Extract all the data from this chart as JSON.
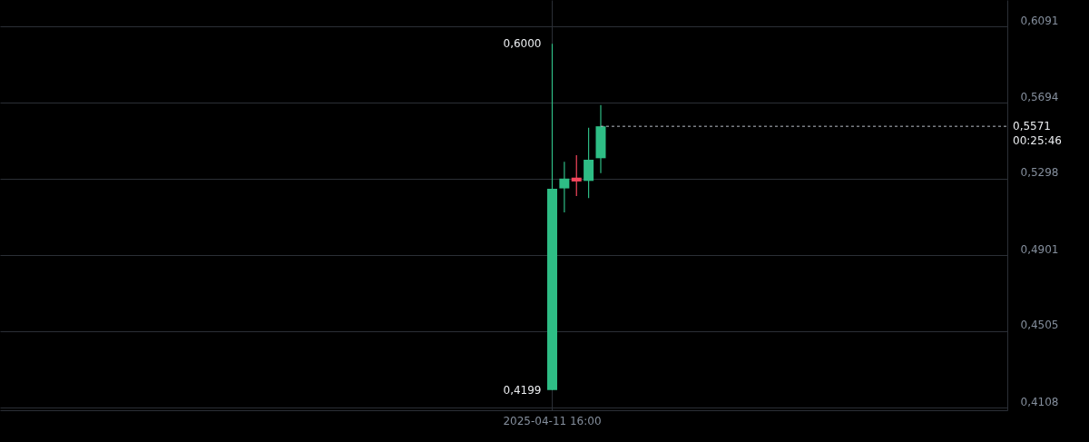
{
  "chart_data": {
    "type": "candlestick",
    "categories": [
      null,
      null,
      null,
      null,
      null,
      null,
      null,
      null,
      null,
      null,
      null,
      null,
      null,
      null,
      null,
      null,
      null,
      null,
      null,
      null,
      null,
      null,
      null,
      null,
      null,
      null,
      null,
      null,
      null,
      null,
      null,
      null,
      null,
      null,
      null,
      null,
      null,
      null,
      null,
      null,
      null,
      null,
      null,
      null,
      null,
      "2025-04-11 16:00",
      null,
      null,
      null,
      null,
      null,
      null,
      null,
      null,
      null,
      null,
      null,
      null,
      null,
      null,
      null,
      null,
      null,
      null,
      null,
      null,
      null,
      null,
      null,
      null,
      null,
      null,
      null,
      null,
      null,
      null,
      null,
      null,
      null,
      null,
      null,
      null,
      null
    ],
    "ohlc": [
      null,
      null,
      null,
      null,
      null,
      null,
      null,
      null,
      null,
      null,
      null,
      null,
      null,
      null,
      null,
      null,
      null,
      null,
      null,
      null,
      null,
      null,
      null,
      null,
      null,
      null,
      null,
      null,
      null,
      null,
      null,
      null,
      null,
      null,
      null,
      null,
      null,
      null,
      null,
      null,
      null,
      null,
      null,
      null,
      null,
      [
        0.4199,
        0.6,
        0.4199,
        0.5246
      ],
      [
        0.5248,
        0.5386,
        0.5123,
        0.5299
      ],
      [
        0.5304,
        0.5421,
        0.5208,
        0.5284
      ],
      [
        0.5287,
        0.5564,
        0.5198,
        0.5397
      ],
      [
        0.5405,
        0.5682,
        0.5328,
        0.5571
      ],
      null,
      null,
      null,
      null,
      null,
      null,
      null,
      null,
      null,
      null,
      null,
      null,
      null,
      null,
      null,
      null,
      null,
      null,
      null,
      null,
      null,
      null,
      null,
      null,
      null,
      null,
      null,
      null,
      null,
      null,
      null,
      null,
      null
    ],
    "colors": [
      null,
      null,
      null,
      null,
      null,
      null,
      null,
      null,
      null,
      null,
      null,
      null,
      null,
      null,
      null,
      null,
      null,
      null,
      null,
      null,
      null,
      null,
      null,
      null,
      null,
      null,
      null,
      null,
      null,
      null,
      null,
      null,
      null,
      null,
      null,
      null,
      null,
      null,
      null,
      null,
      null,
      null,
      null,
      null,
      null,
      "#2ebd85",
      "#2ebd85",
      "#f6465d",
      "#2ebd85",
      "#2ebd85",
      null,
      null,
      null,
      null,
      null,
      null,
      null,
      null,
      null,
      null,
      null,
      null,
      null,
      null,
      null,
      null,
      null,
      null,
      null,
      null,
      null,
      null,
      null,
      null,
      null,
      null,
      null,
      null,
      null,
      null,
      null,
      null,
      null
    ],
    "ylim": [
      0.4094,
      0.6228
    ],
    "yticks": [
      {
        "value": 0.4108,
        "label": "0,4108"
      },
      {
        "value": 0.4505,
        "label": "0,4505"
      },
      {
        "value": 0.4901,
        "label": "0,4901"
      },
      {
        "value": 0.5298,
        "label": "0,5298"
      },
      {
        "value": 0.5694,
        "label": "0,5694"
      },
      {
        "value": 0.6091,
        "label": "0,6091"
      }
    ],
    "grid": true,
    "ref_lines": [
      {
        "axis": "y",
        "value": 0.5571,
        "label": "0,5571\n00:25:46",
        "line_style": "dashed",
        "color": "#b7bdc6"
      }
    ],
    "annotations": [
      {
        "text": "0,6000",
        "x": "2025-04-11 16:00",
        "y": 0.6
      },
      {
        "text": "0,4199",
        "x": "2025-04-11 16:00",
        "y": 0.4199
      }
    ]
  }
}
